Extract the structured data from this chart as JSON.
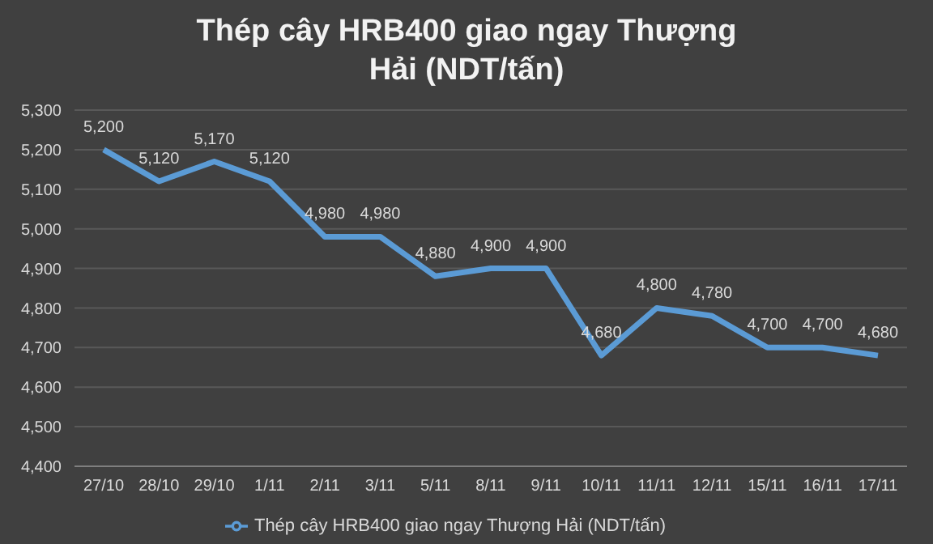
{
  "chart_data": {
    "type": "line",
    "title": "Thép cây HRB400 giao ngay Thượng Hải (NDT/tấn)",
    "categories": [
      "27/10",
      "28/10",
      "29/10",
      "1/11",
      "2/11",
      "3/11",
      "5/11",
      "8/11",
      "9/11",
      "10/11",
      "11/11",
      "12/11",
      "15/11",
      "16/11",
      "17/11"
    ],
    "series": [
      {
        "name": "Thép cây HRB400 giao ngay Thượng Hải (NDT/tấn)",
        "color": "#5b9bd5",
        "values": [
          5200,
          5120,
          5170,
          5120,
          4980,
          4980,
          4880,
          4900,
          4900,
          4680,
          4800,
          4780,
          4700,
          4700,
          4680
        ],
        "value_labels": [
          "5,200",
          "5,120",
          "5,170",
          "5,120",
          "4,980",
          "4,980",
          "4,880",
          "4,900",
          "4,900",
          "4,680",
          "4,800",
          "4,780",
          "4,700",
          "4,700",
          "4,680"
        ]
      }
    ],
    "ylim": [
      4400,
      5300
    ],
    "yticks": [
      {
        "value": 4400,
        "label": "4,400"
      },
      {
        "value": 4500,
        "label": "4,500"
      },
      {
        "value": 4600,
        "label": "4,600"
      },
      {
        "value": 4700,
        "label": "4,700"
      },
      {
        "value": 4800,
        "label": "4,800"
      },
      {
        "value": 4900,
        "label": "4,900"
      },
      {
        "value": 5000,
        "label": "5,000"
      },
      {
        "value": 5100,
        "label": "5,100"
      },
      {
        "value": 5200,
        "label": "5,200"
      },
      {
        "value": 5300,
        "label": "5,300"
      }
    ],
    "grid": "y",
    "legend": "bottom",
    "marker": "none",
    "line_style": "solid"
  }
}
